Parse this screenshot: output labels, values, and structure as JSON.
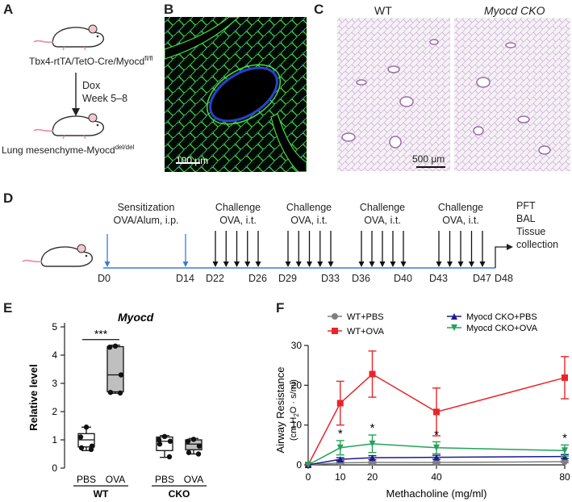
{
  "panels": {
    "a": "A",
    "b": "B",
    "c": "C",
    "d": "D",
    "e": "E",
    "f": "F"
  },
  "panel_a": {
    "genotype": "Tbx4-rtTA/TetO-Cre/Myocd",
    "genotype_sup": "fl/fl",
    "arrow_label_1": "Dox",
    "arrow_label_2": "Week 5–8",
    "result": "Lung mesenchyme-Myocd",
    "result_sup": "del/del"
  },
  "panel_b": {
    "scale_bar": "100 μm"
  },
  "panel_c": {
    "label_wt": "WT",
    "label_cko": "Myocd CKO",
    "scale_bar": "500 μm"
  },
  "panel_d": {
    "phases": [
      {
        "title": "Sensitization",
        "detail": "OVA/Alum, i.p."
      },
      {
        "title": "Challenge",
        "detail": "OVA, i.t."
      },
      {
        "title": "Challenge",
        "detail": "OVA, i.t."
      },
      {
        "title": "Challenge",
        "detail": "OVA, i.t."
      },
      {
        "title": "Challenge",
        "detail": "OVA, i.t."
      }
    ],
    "days": [
      "D0",
      "D14",
      "D22",
      "D26",
      "D29",
      "D33",
      "D36",
      "D40",
      "D43",
      "D47",
      "D48"
    ],
    "endpoints": [
      "PFT",
      "BAL",
      "Tissue",
      "collection"
    ]
  },
  "chart_data": [
    {
      "type": "box",
      "title": "Myocd",
      "ylabel": "Relative level",
      "ylim": [
        0,
        5
      ],
      "yticks": [
        "0",
        "1",
        "2",
        "3",
        "4",
        "5"
      ],
      "categories": [
        "PBS",
        "OVA",
        "PBS",
        "OVA"
      ],
      "groups": [
        "WT",
        "CKO"
      ],
      "significance": "***",
      "boxes": [
        {
          "group": "WT",
          "label": "PBS",
          "min": 0.62,
          "q1": 0.75,
          "median": 1.0,
          "q3": 1.22,
          "max": 1.45,
          "points": [
            1.45,
            1.1,
            0.78,
            0.72,
            0.66
          ],
          "fill": "#ffffff"
        },
        {
          "group": "WT",
          "label": "OVA",
          "min": 2.65,
          "q1": 2.7,
          "median": 3.3,
          "q3": 4.3,
          "max": 4.35,
          "points": [
            4.32,
            4.28,
            3.3,
            2.68,
            2.66
          ],
          "fill": "#bfbfbf"
        },
        {
          "group": "CKO",
          "label": "PBS",
          "min": 0.38,
          "q1": 0.62,
          "median": 0.95,
          "q3": 1.1,
          "max": 1.15,
          "points": [
            1.12,
            1.0,
            0.95,
            0.85,
            0.4
          ],
          "fill": "#ffffff"
        },
        {
          "group": "CKO",
          "label": "OVA",
          "min": 0.5,
          "q1": 0.65,
          "median": 0.85,
          "q3": 1.0,
          "max": 1.05,
          "points": [
            1.02,
            0.95,
            0.78,
            0.55,
            0.5
          ],
          "fill": "#bfbfbf"
        }
      ]
    },
    {
      "type": "line",
      "ylabel": "Airway Resistance",
      "ylabel_unit_prefix": "(cm H",
      "ylabel_unit_sub": "2",
      "ylabel_unit_suffix": "O · s/ml)",
      "xlabel": "Methacholine (mg/ml)",
      "x": [
        0,
        10,
        20,
        40,
        80
      ],
      "xticks": [
        "0",
        "10",
        "20",
        "40",
        "80"
      ],
      "ylim": [
        0,
        30
      ],
      "yticks": [
        "0",
        "10",
        "20",
        "30"
      ],
      "significance": "*",
      "significant_points": [
        10,
        20,
        40,
        80
      ],
      "legend": [
        "WT+PBS",
        "WT+OVA",
        "Myocd CKO+PBS",
        "Myocd CKO+OVA"
      ],
      "series": [
        {
          "name": "WT+PBS",
          "color": "#808080",
          "marker": "circle",
          "values": [
            0,
            0.5,
            0.6,
            0.6,
            0.8
          ],
          "err": [
            0,
            0.2,
            0.2,
            0.2,
            0.2
          ]
        },
        {
          "name": "WT+OVA",
          "color": "#e8262a",
          "marker": "square",
          "values": [
            0,
            15.5,
            22.8,
            13.3,
            21.9
          ],
          "err": [
            0,
            5.5,
            5.8,
            6.0,
            5.3
          ]
        },
        {
          "name": "Myocd CKO+PBS",
          "color": "#1c1c8c",
          "marker": "triangle-up",
          "values": [
            0,
            1.4,
            1.8,
            1.9,
            2.1
          ],
          "err": [
            0,
            0.4,
            0.5,
            0.5,
            0.5
          ]
        },
        {
          "name": "Myocd CKO+OVA",
          "color": "#22a35a",
          "marker": "triangle-down",
          "values": [
            0,
            4.3,
            5.3,
            4.3,
            3.6
          ],
          "err": [
            0,
            1.8,
            2.2,
            1.5,
            1.4
          ]
        }
      ]
    }
  ]
}
